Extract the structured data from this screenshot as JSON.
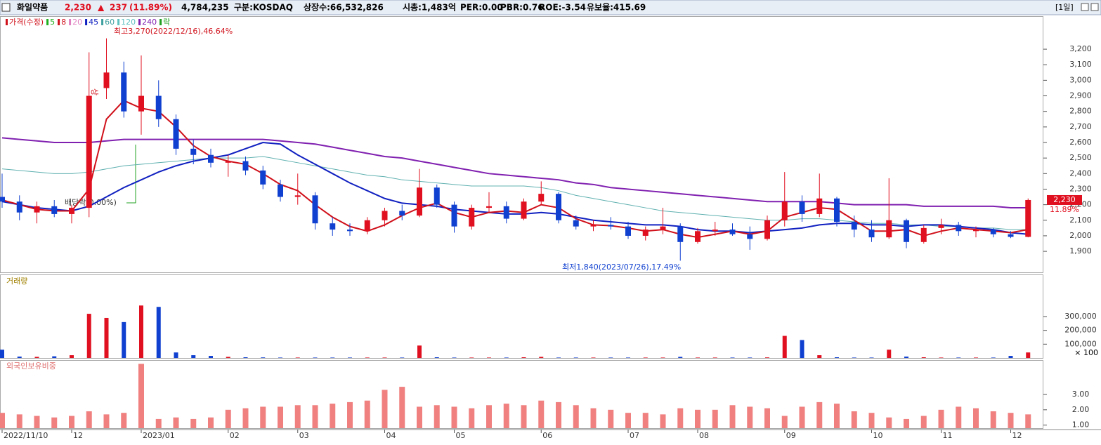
{
  "header": {
    "name": "화일약품",
    "price": "2,230",
    "arrow": "▲",
    "change": "237",
    "pct": "(11.89%)",
    "volume": "4,784,235",
    "market": "구분:KOSDAQ",
    "shares": "상장수:66,532,826",
    "cap": "시총:1,483억",
    "per": "PER:0.00",
    "pbr": "PBR:0.76",
    "roe": "ROE:-3.54",
    "reserve": "유보율:415.69",
    "period": "[1일]"
  },
  "chart_data": {
    "type": "candlestick",
    "legend": [
      {
        "label": "가격(수정)",
        "color": "#d0101a"
      },
      {
        "label": "5",
        "color": "#20b020"
      },
      {
        "label": "8",
        "color": "#d0101a"
      },
      {
        "label": "20",
        "color": "#e080c0"
      },
      {
        "label": "45",
        "color": "#1020c0"
      },
      {
        "label": "60",
        "color": "#40a0a0"
      },
      {
        "label": "120",
        "color": "#60c0c0"
      },
      {
        "label": "240",
        "color": "#8020b0"
      },
      {
        "label": "락",
        "color": "#20a020"
      }
    ],
    "annotations": {
      "high": "최고3,270(2022/12/16),46.64%",
      "low": "최저1,840(2023/07/26),17.49%",
      "dividend": "배당락(0.00%)",
      "up": "상",
      "last_price": "2,230",
      "last_pct": "11.89%"
    },
    "categories": [
      "2022/11/10",
      null,
      null,
      null,
      "12",
      null,
      null,
      null,
      "2023/01",
      null,
      null,
      null,
      null,
      "02",
      null,
      null,
      null,
      "03",
      null,
      null,
      null,
      null,
      "04",
      null,
      null,
      null,
      "05",
      null,
      null,
      null,
      null,
      "06",
      null,
      null,
      null,
      null,
      "07",
      null,
      null,
      null,
      "08",
      null,
      null,
      null,
      null,
      "09",
      null,
      null,
      null,
      null,
      "10",
      null,
      null,
      null,
      "11",
      null,
      null,
      null,
      "12",
      null
    ],
    "candles": [
      [
        2250,
        2400,
        2180,
        2220
      ],
      [
        2220,
        2260,
        2100,
        2150
      ],
      [
        2150,
        2220,
        2080,
        2190
      ],
      [
        2190,
        2230,
        2120,
        2140
      ],
      [
        2140,
        2200,
        2080,
        2180
      ],
      [
        2180,
        3180,
        2120,
        2900
      ],
      [
        2950,
        3270,
        2880,
        3050
      ],
      [
        3050,
        3120,
        2760,
        2800
      ],
      [
        2800,
        3160,
        2650,
        2900
      ],
      [
        2900,
        3000,
        2700,
        2750
      ],
      [
        2750,
        2780,
        2520,
        2560
      ],
      [
        2560,
        2620,
        2460,
        2520
      ],
      [
        2520,
        2560,
        2440,
        2470
      ],
      [
        2470,
        2520,
        2380,
        2480
      ],
      [
        2480,
        2510,
        2390,
        2420
      ],
      [
        2420,
        2450,
        2300,
        2330
      ],
      [
        2330,
        2360,
        2220,
        2250
      ],
      [
        2250,
        2400,
        2200,
        2260
      ],
      [
        2260,
        2280,
        2040,
        2080
      ],
      [
        2080,
        2120,
        2000,
        2040
      ],
      [
        2040,
        2080,
        2000,
        2030
      ],
      [
        2030,
        2120,
        2010,
        2100
      ],
      [
        2100,
        2180,
        2060,
        2160
      ],
      [
        2160,
        2200,
        2100,
        2130
      ],
      [
        2130,
        2430,
        2120,
        2310
      ],
      [
        2310,
        2330,
        2180,
        2200
      ],
      [
        2200,
        2220,
        2020,
        2060
      ],
      [
        2060,
        2200,
        2040,
        2180
      ],
      [
        2180,
        2280,
        2150,
        2190
      ],
      [
        2190,
        2220,
        2080,
        2110
      ],
      [
        2110,
        2240,
        2100,
        2220
      ],
      [
        2220,
        2350,
        2200,
        2270
      ],
      [
        2270,
        2280,
        2080,
        2100
      ],
      [
        2100,
        2130,
        2040,
        2060
      ],
      [
        2060,
        2100,
        2030,
        2070
      ],
      [
        2070,
        2120,
        2040,
        2060
      ],
      [
        2060,
        2090,
        1980,
        2000
      ],
      [
        2000,
        2060,
        1970,
        2040
      ],
      [
        2040,
        2180,
        2010,
        2060
      ],
      [
        2060,
        2080,
        1840,
        1960
      ],
      [
        1960,
        2050,
        1950,
        2030
      ],
      [
        2030,
        2090,
        2000,
        2040
      ],
      [
        2040,
        2080,
        2000,
        2010
      ],
      [
        2010,
        2060,
        1910,
        1980
      ],
      [
        1980,
        2130,
        1970,
        2100
      ],
      [
        2100,
        2410,
        2060,
        2220
      ],
      [
        2220,
        2260,
        2090,
        2140
      ],
      [
        2140,
        2400,
        2120,
        2240
      ],
      [
        2240,
        2250,
        2060,
        2090
      ],
      [
        2090,
        2130,
        1990,
        2040
      ],
      [
        2040,
        2100,
        1960,
        1990
      ],
      [
        1990,
        2370,
        1980,
        2100
      ],
      [
        2100,
        2110,
        1920,
        1960
      ],
      [
        1960,
        2070,
        1950,
        2050
      ],
      [
        2050,
        2110,
        2010,
        2070
      ],
      [
        2070,
        2090,
        2000,
        2030
      ],
      [
        2030,
        2060,
        1990,
        2040
      ],
      [
        2040,
        2050,
        1990,
        2010
      ],
      [
        2010,
        2030,
        1985,
        1993
      ],
      [
        1993,
        2240,
        1990,
        2230
      ]
    ],
    "up_color": "#e01020",
    "down_color": "#1040d0",
    "ma_lines": [
      {
        "color": "#8020b0",
        "width": 2,
        "values": [
          2630,
          2620,
          2610,
          2600,
          2600,
          2600,
          2610,
          2620,
          2620,
          2620,
          2620,
          2620,
          2620,
          2620,
          2620,
          2620,
          2610,
          2600,
          2590,
          2570,
          2550,
          2530,
          2510,
          2500,
          2480,
          2460,
          2440,
          2420,
          2400,
          2390,
          2380,
          2370,
          2360,
          2340,
          2330,
          2310,
          2300,
          2290,
          2280,
          2270,
          2260,
          2250,
          2240,
          2230,
          2220,
          2220,
          2220,
          2220,
          2210,
          2200,
          2200,
          2200,
          2200,
          2190,
          2190,
          2190,
          2190,
          2190,
          2180,
          2180
        ]
      },
      {
        "color": "#60b0b0",
        "width": 1,
        "values": [
          2430,
          2420,
          2410,
          2400,
          2400,
          2410,
          2430,
          2450,
          2460,
          2470,
          2480,
          2490,
          2500,
          2500,
          2500,
          2510,
          2490,
          2470,
          2450,
          2430,
          2410,
          2390,
          2380,
          2360,
          2350,
          2340,
          2330,
          2320,
          2320,
          2320,
          2320,
          2310,
          2290,
          2260,
          2240,
          2220,
          2200,
          2180,
          2160,
          2150,
          2140,
          2130,
          2120,
          2110,
          2100,
          2100,
          2110,
          2110,
          2100,
          2090,
          2080,
          2080,
          2070,
          2070,
          2060,
          2060,
          2050,
          2050,
          2040,
          2040
        ]
      },
      {
        "color": "#1020c0",
        "width": 2,
        "values": [
          2220,
          2200,
          2180,
          2170,
          2160,
          2190,
          2250,
          2310,
          2360,
          2410,
          2450,
          2480,
          2500,
          2520,
          2560,
          2600,
          2590,
          2520,
          2460,
          2400,
          2340,
          2290,
          2240,
          2210,
          2200,
          2190,
          2170,
          2160,
          2150,
          2140,
          2140,
          2150,
          2140,
          2120,
          2100,
          2090,
          2080,
          2070,
          2070,
          2060,
          2040,
          2030,
          2030,
          2020,
          2030,
          2040,
          2050,
          2070,
          2080,
          2080,
          2070,
          2070,
          2060,
          2070,
          2070,
          2060,
          2050,
          2040,
          2020,
          2010
        ]
      },
      {
        "color": "#d0101a",
        "width": 2,
        "values": [
          2230,
          2200,
          2170,
          2160,
          2160,
          2300,
          2750,
          2870,
          2820,
          2800,
          2700,
          2580,
          2510,
          2480,
          2460,
          2400,
          2330,
          2290,
          2200,
          2120,
          2060,
          2030,
          2070,
          2130,
          2180,
          2210,
          2150,
          2120,
          2150,
          2160,
          2150,
          2200,
          2180,
          2110,
          2070,
          2065,
          2050,
          2030,
          2040,
          2010,
          1990,
          2010,
          2030,
          2010,
          2030,
          2120,
          2150,
          2180,
          2170,
          2100,
          2030,
          2030,
          2040,
          2000,
          2030,
          2050,
          2040,
          2030,
          2020,
          2040
        ]
      }
    ],
    "ylim": [
      1765,
      3408
    ],
    "yticks": [
      {
        "value": 1900,
        "label": "1,900"
      },
      {
        "value": 2000,
        "label": "2,000"
      },
      {
        "value": 2100,
        "label": "2,100"
      },
      {
        "value": 2200,
        "label": "2,200"
      },
      {
        "value": 2300,
        "label": "2,300"
      },
      {
        "value": 2400,
        "label": "2,400"
      },
      {
        "value": 2500,
        "label": "2,500"
      },
      {
        "value": 2600,
        "label": "2,600"
      },
      {
        "value": 2700,
        "label": "2,700"
      },
      {
        "value": 2800,
        "label": "2,800"
      },
      {
        "value": 2900,
        "label": "2,900"
      },
      {
        "value": 3000,
        "label": "3,000"
      },
      {
        "value": 3100,
        "label": "3,100"
      },
      {
        "value": 3200,
        "label": "3,200"
      }
    ],
    "volume": {
      "title": "거래량",
      "unit": "× 100",
      "values": [
        60000,
        10000,
        8000,
        12000,
        20000,
        320000,
        290000,
        260000,
        380000,
        370000,
        40000,
        20000,
        15000,
        8000,
        5000,
        4000,
        3000,
        3000,
        3000,
        3000,
        3000,
        3000,
        3000,
        3000,
        90000,
        5000,
        3000,
        3000,
        3000,
        3000,
        5000,
        8000,
        3000,
        3000,
        3000,
        3000,
        3000,
        3000,
        3000,
        8000,
        3000,
        3000,
        3000,
        3000,
        4000,
        160000,
        130000,
        20000,
        5000,
        3000,
        3000,
        60000,
        10000,
        5000,
        3000,
        3000,
        3000,
        3000,
        15000,
        40000
      ],
      "ylim": [
        0,
        600000
      ],
      "yticks": [
        {
          "value": 100000,
          "label": "100,000"
        },
        {
          "value": 200000,
          "label": "200,000"
        },
        {
          "value": 300000,
          "label": "300,000"
        }
      ]
    },
    "foreign": {
      "title": "외국인보유비중",
      "color": "#f08080",
      "values": [
        1.8,
        1.7,
        1.6,
        1.5,
        1.6,
        1.9,
        1.7,
        1.8,
        5.0,
        1.4,
        1.5,
        1.4,
        1.5,
        2.0,
        2.1,
        2.2,
        2.2,
        2.3,
        2.3,
        2.4,
        2.5,
        2.6,
        3.3,
        3.5,
        2.2,
        2.3,
        2.2,
        2.1,
        2.3,
        2.4,
        2.3,
        2.6,
        2.5,
        2.3,
        2.1,
        2.0,
        1.8,
        1.8,
        1.7,
        2.1,
        2.0,
        2.0,
        2.3,
        2.2,
        2.1,
        1.6,
        2.2,
        2.5,
        2.4,
        1.9,
        1.8,
        1.5,
        1.4,
        1.6,
        2.0,
        2.2,
        2.1,
        1.9,
        1.8,
        1.7
      ],
      "ylim": [
        0.8,
        5.2
      ],
      "yticks": [
        {
          "value": 1,
          "label": "1.00"
        },
        {
          "value": 2,
          "label": "2.00"
        },
        {
          "value": 3,
          "label": "3.00"
        }
      ]
    }
  }
}
